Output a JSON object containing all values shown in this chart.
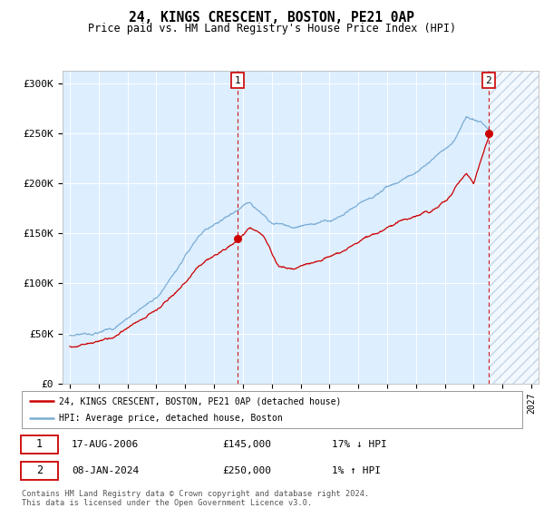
{
  "title": "24, KINGS CRESCENT, BOSTON, PE21 0AP",
  "subtitle": "Price paid vs. HM Land Registry's House Price Index (HPI)",
  "ylabel_ticks": [
    "£0",
    "£50K",
    "£100K",
    "£150K",
    "£200K",
    "£250K",
    "£300K"
  ],
  "ytick_values": [
    0,
    50000,
    100000,
    150000,
    200000,
    250000,
    300000
  ],
  "ylim": [
    0,
    312000
  ],
  "xlim_start": 1994.5,
  "xlim_end": 2027.5,
  "hpi_color": "#7aadd4",
  "price_color": "#cc0000",
  "marker1_date": 2006.63,
  "marker1_price": 145000,
  "marker2_date": 2024.03,
  "marker2_price": 250000,
  "legend_line1": "24, KINGS CRESCENT, BOSTON, PE21 0AP (detached house)",
  "legend_line2": "HPI: Average price, detached house, Boston",
  "table_row1_num": "1",
  "table_row1_date": "17-AUG-2006",
  "table_row1_price": "£145,000",
  "table_row1_hpi": "17% ↓ HPI",
  "table_row2_num": "2",
  "table_row2_date": "08-JAN-2024",
  "table_row2_price": "£250,000",
  "table_row2_hpi": "1% ↑ HPI",
  "footnote": "Contains HM Land Registry data © Crown copyright and database right 2024.\nThis data is licensed under the Open Government Licence v3.0.",
  "bg_color": "#ddeeff",
  "future_start": 2024.03
}
